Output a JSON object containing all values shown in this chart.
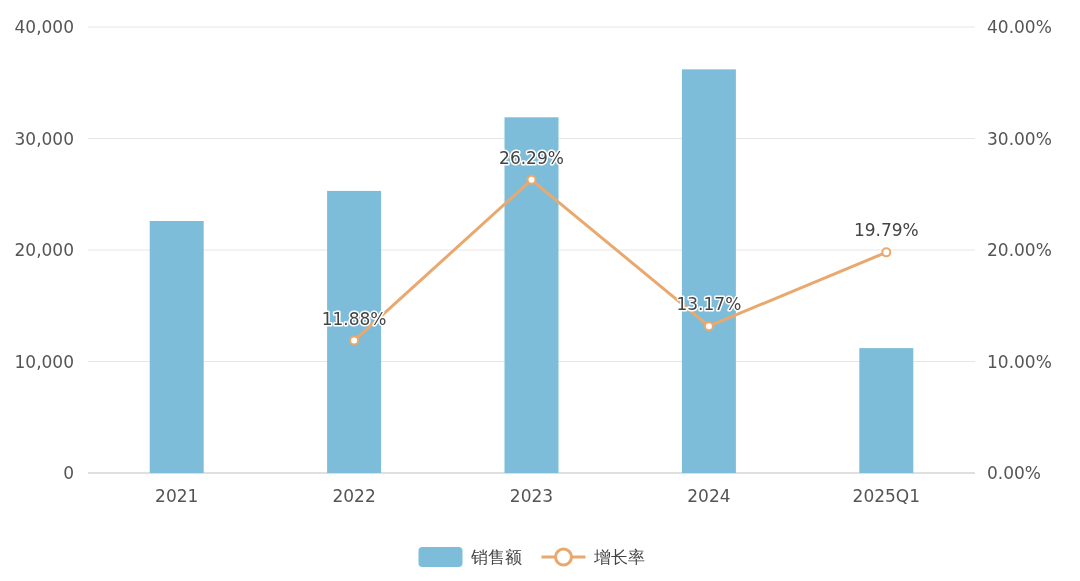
{
  "chart_data": {
    "type": "bar",
    "categories": [
      "2021",
      "2022",
      "2023",
      "2024",
      "2025Q1"
    ],
    "series": [
      {
        "name": "销售额",
        "color": "#7dbdda",
        "values": [
          22600,
          25300,
          31900,
          36200,
          11200
        ]
      },
      {
        "name": "增长率",
        "type": "line",
        "axis": "y2",
        "color": "#e9a96e",
        "values": [
          null,
          11.88,
          26.29,
          13.17,
          19.79
        ],
        "value_labels": [
          null,
          "11.88%",
          "26.29%",
          "13.17%",
          "19.79%"
        ]
      }
    ],
    "ylim": [
      0,
      40000
    ],
    "yticks": [
      0,
      {
        "value": 10000,
        "label": "10,000"
      },
      {
        "value": 20000,
        "label": "20,000"
      },
      {
        "value": 30000,
        "label": "30,000"
      },
      {
        "value": 40000,
        "label": "40,000"
      }
    ],
    "y2lim": [
      0,
      40
    ],
    "y2ticks": [
      {
        "value": 0,
        "label": "0.00%"
      },
      {
        "value": 10,
        "label": "10.00%"
      },
      {
        "value": 20,
        "label": "20.00%"
      },
      {
        "value": 30,
        "label": "30.00%"
      },
      {
        "value": 40,
        "label": "40.00%"
      }
    ],
    "grid": "y",
    "legend": "bottom",
    "marker": "circle"
  }
}
